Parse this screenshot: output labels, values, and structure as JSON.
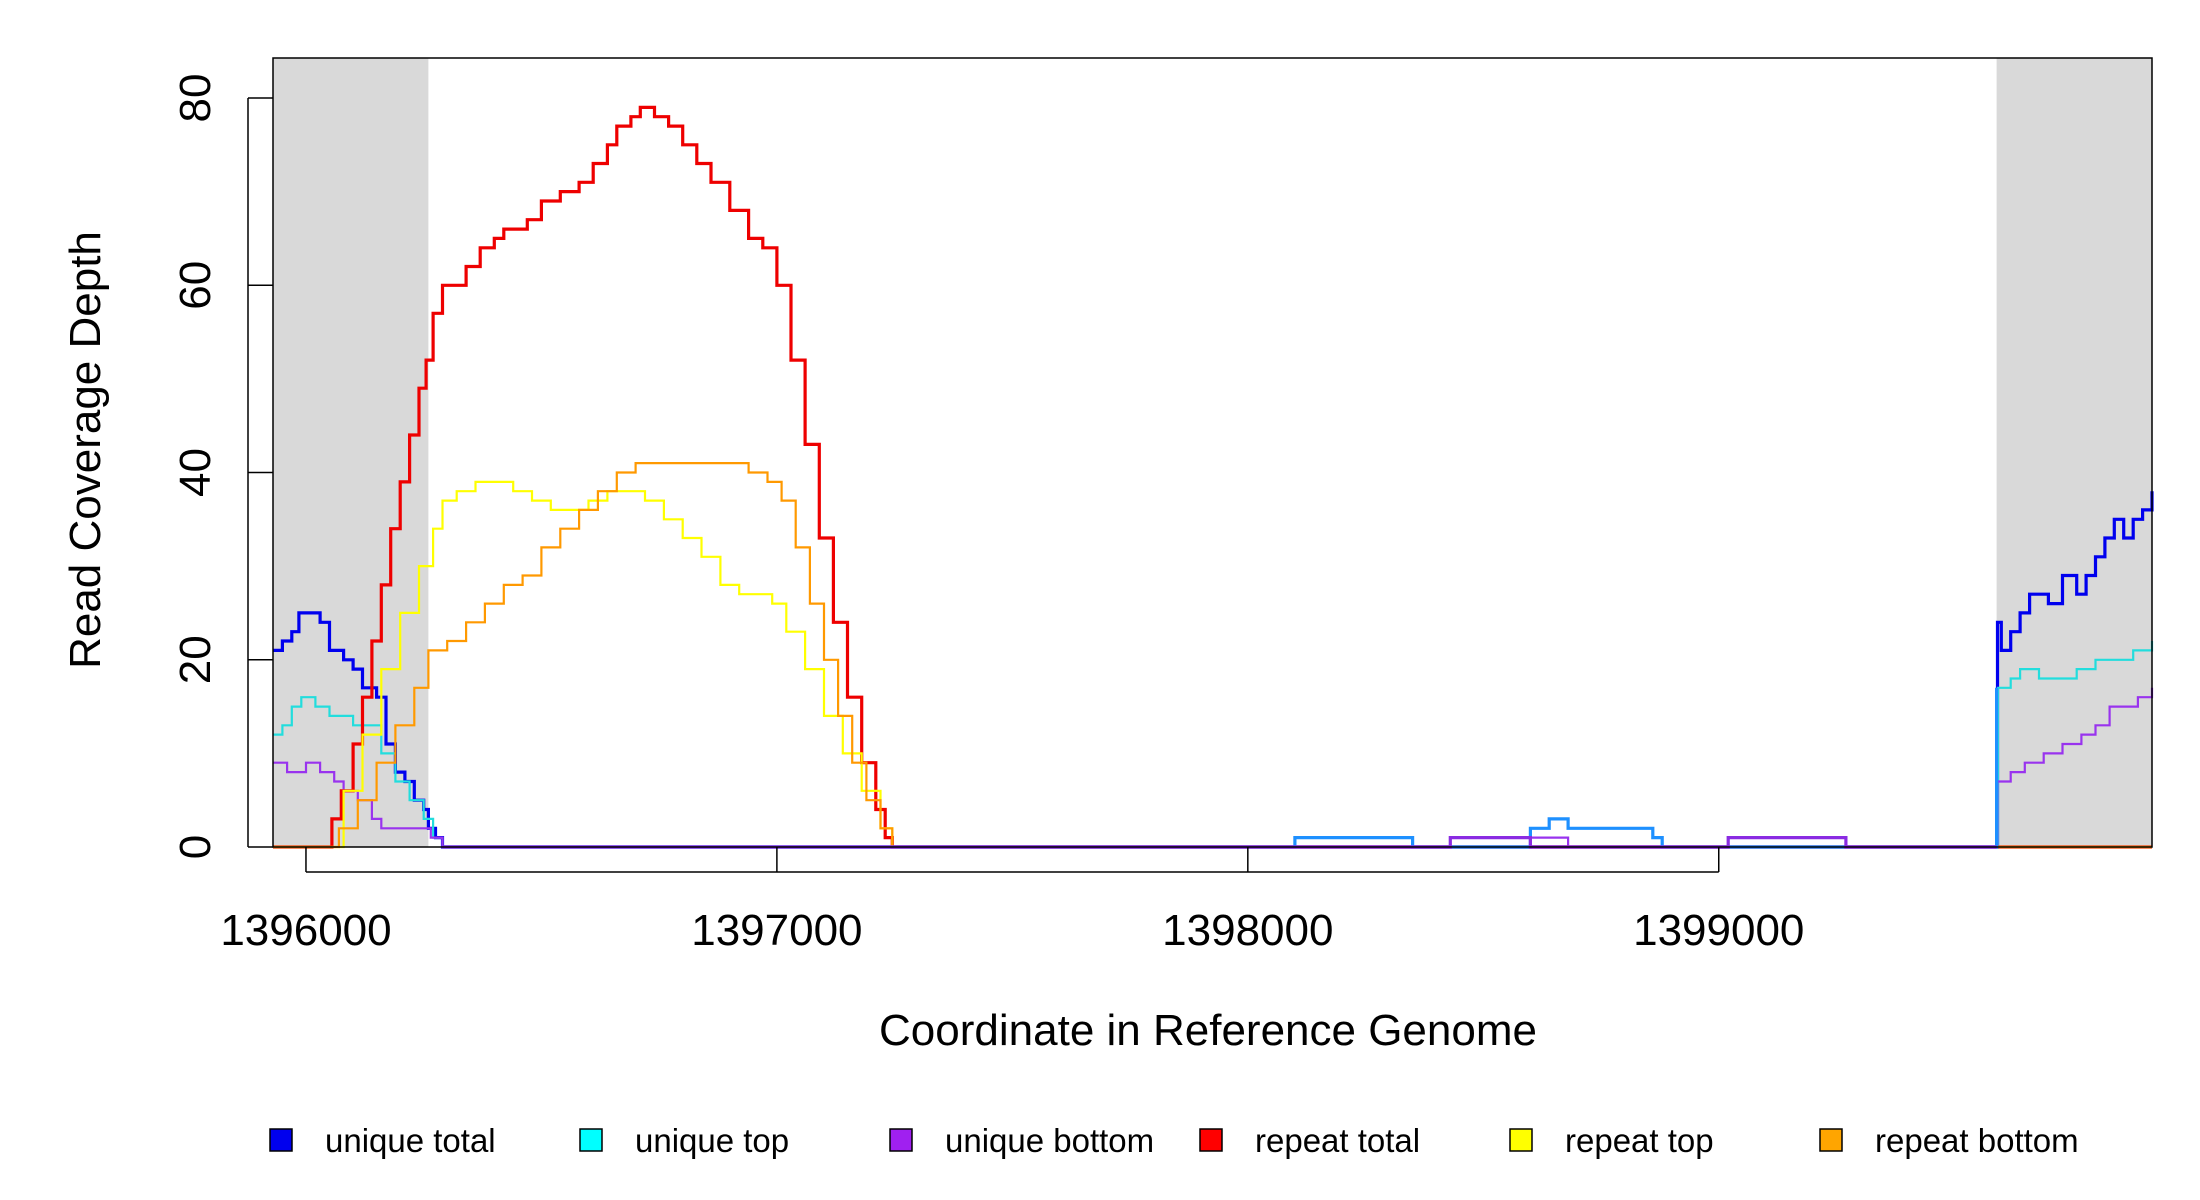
{
  "chart_data": {
    "type": "line",
    "title": "",
    "xlabel": "Coordinate in Reference Genome",
    "ylabel": "Read Coverage Depth",
    "xlim": [
      1395930,
      1399920
    ],
    "ylim": [
      0,
      84
    ],
    "x_ticks": [
      1396000,
      1397000,
      1398000,
      1399000
    ],
    "x_tick_labels": [
      "1396000",
      "1397000",
      "1398000",
      "1399000"
    ],
    "y_ticks": [
      0,
      20,
      40,
      60,
      80
    ],
    "y_tick_labels": [
      "0",
      "20",
      "40",
      "60",
      "80"
    ],
    "shaded_regions": [
      [
        1395930,
        1396260
      ],
      [
        1399590,
        1399920
      ]
    ],
    "legend_position": "bottom",
    "series": [
      {
        "name": "unique total",
        "color": "#0000ee",
        "width": 3.2,
        "points": [
          [
            1395930,
            21
          ],
          [
            1395950,
            22
          ],
          [
            1395970,
            23
          ],
          [
            1395985,
            25
          ],
          [
            1396015,
            25
          ],
          [
            1396030,
            24
          ],
          [
            1396050,
            21
          ],
          [
            1396080,
            20
          ],
          [
            1396100,
            19
          ],
          [
            1396120,
            17
          ],
          [
            1396150,
            16
          ],
          [
            1396170,
            11
          ],
          [
            1396190,
            8
          ],
          [
            1396210,
            7
          ],
          [
            1396230,
            5
          ],
          [
            1396250,
            4
          ],
          [
            1396260,
            2
          ],
          [
            1396275,
            1
          ],
          [
            1396290,
            0
          ],
          [
            1399590,
            0
          ],
          [
            1399592,
            24
          ],
          [
            1399600,
            21
          ],
          [
            1399620,
            23
          ],
          [
            1399640,
            25
          ],
          [
            1399660,
            27
          ],
          [
            1399700,
            26
          ],
          [
            1399730,
            29
          ],
          [
            1399760,
            27
          ],
          [
            1399780,
            29
          ],
          [
            1399800,
            31
          ],
          [
            1399820,
            33
          ],
          [
            1399840,
            35
          ],
          [
            1399860,
            33
          ],
          [
            1399880,
            35
          ],
          [
            1399900,
            36
          ],
          [
            1399920,
            38
          ]
        ]
      },
      {
        "name": "unique top",
        "color": "#22dddd",
        "width": 2.2,
        "points": [
          [
            1395930,
            12
          ],
          [
            1395950,
            13
          ],
          [
            1395970,
            15
          ],
          [
            1395990,
            16
          ],
          [
            1396020,
            15
          ],
          [
            1396050,
            14
          ],
          [
            1396100,
            13
          ],
          [
            1396130,
            13
          ],
          [
            1396160,
            10
          ],
          [
            1396190,
            7
          ],
          [
            1396220,
            5
          ],
          [
            1396250,
            3
          ],
          [
            1396270,
            1
          ],
          [
            1396290,
            0
          ],
          [
            1399590,
            0
          ],
          [
            1399593,
            17
          ],
          [
            1399620,
            18
          ],
          [
            1399640,
            19
          ],
          [
            1399680,
            18
          ],
          [
            1399720,
            18
          ],
          [
            1399760,
            19
          ],
          [
            1399800,
            20
          ],
          [
            1399840,
            20
          ],
          [
            1399880,
            21
          ],
          [
            1399920,
            22
          ]
        ]
      },
      {
        "name": "unique bottom",
        "color": "#9933ee",
        "width": 2.2,
        "points": [
          [
            1395930,
            9
          ],
          [
            1395960,
            8
          ],
          [
            1396000,
            9
          ],
          [
            1396030,
            8
          ],
          [
            1396060,
            7
          ],
          [
            1396080,
            6
          ],
          [
            1396110,
            5
          ],
          [
            1396140,
            3
          ],
          [
            1396160,
            2
          ],
          [
            1396250,
            2
          ],
          [
            1396265,
            1
          ],
          [
            1396290,
            0
          ],
          [
            1398430,
            0
          ],
          [
            1398430,
            1
          ],
          [
            1398600,
            1
          ],
          [
            1398670,
            1
          ],
          [
            1398680,
            0
          ],
          [
            1399590,
            0
          ],
          [
            1399592,
            7
          ],
          [
            1399620,
            8
          ],
          [
            1399650,
            9
          ],
          [
            1399690,
            10
          ],
          [
            1399730,
            11
          ],
          [
            1399770,
            12
          ],
          [
            1399800,
            13
          ],
          [
            1399830,
            15
          ],
          [
            1399860,
            15
          ],
          [
            1399890,
            16
          ],
          [
            1399920,
            17
          ]
        ]
      },
      {
        "name": "repeat total",
        "color": "#ee0000",
        "width": 3.2,
        "points": [
          [
            1395930,
            0
          ],
          [
            1396040,
            0
          ],
          [
            1396055,
            3
          ],
          [
            1396075,
            6
          ],
          [
            1396100,
            11
          ],
          [
            1396120,
            16
          ],
          [
            1396140,
            22
          ],
          [
            1396160,
            28
          ],
          [
            1396180,
            34
          ],
          [
            1396200,
            39
          ],
          [
            1396220,
            44
          ],
          [
            1396240,
            49
          ],
          [
            1396255,
            52
          ],
          [
            1396270,
            57
          ],
          [
            1396290,
            60
          ],
          [
            1396310,
            60
          ],
          [
            1396340,
            62
          ],
          [
            1396370,
            64
          ],
          [
            1396400,
            65
          ],
          [
            1396420,
            66
          ],
          [
            1396450,
            66
          ],
          [
            1396470,
            67
          ],
          [
            1396500,
            69
          ],
          [
            1396540,
            70
          ],
          [
            1396580,
            71
          ],
          [
            1396610,
            73
          ],
          [
            1396640,
            75
          ],
          [
            1396660,
            77
          ],
          [
            1396690,
            78
          ],
          [
            1396710,
            79
          ],
          [
            1396740,
            78
          ],
          [
            1396770,
            77
          ],
          [
            1396800,
            75
          ],
          [
            1396830,
            73
          ],
          [
            1396860,
            71
          ],
          [
            1396900,
            68
          ],
          [
            1396940,
            65
          ],
          [
            1396970,
            64
          ],
          [
            1397000,
            60
          ],
          [
            1397030,
            52
          ],
          [
            1397060,
            43
          ],
          [
            1397090,
            33
          ],
          [
            1397120,
            24
          ],
          [
            1397150,
            16
          ],
          [
            1397180,
            9
          ],
          [
            1397210,
            4
          ],
          [
            1397230,
            1
          ],
          [
            1397245,
            0
          ],
          [
            1399920,
            0
          ]
        ]
      },
      {
        "name": "repeat top",
        "color": "#ffff00",
        "width": 2.2,
        "points": [
          [
            1395930,
            0
          ],
          [
            1396040,
            0
          ],
          [
            1396080,
            6
          ],
          [
            1396120,
            12
          ],
          [
            1396160,
            19
          ],
          [
            1396200,
            25
          ],
          [
            1396240,
            30
          ],
          [
            1396270,
            34
          ],
          [
            1396290,
            37
          ],
          [
            1396320,
            38
          ],
          [
            1396360,
            39
          ],
          [
            1396400,
            39
          ],
          [
            1396440,
            38
          ],
          [
            1396480,
            37
          ],
          [
            1396520,
            36
          ],
          [
            1396560,
            36
          ],
          [
            1396600,
            37
          ],
          [
            1396640,
            38
          ],
          [
            1396680,
            38
          ],
          [
            1396720,
            37
          ],
          [
            1396760,
            35
          ],
          [
            1396800,
            33
          ],
          [
            1396840,
            31
          ],
          [
            1396880,
            28
          ],
          [
            1396920,
            27
          ],
          [
            1396960,
            27
          ],
          [
            1396990,
            26
          ],
          [
            1397020,
            23
          ],
          [
            1397060,
            19
          ],
          [
            1397100,
            14
          ],
          [
            1397140,
            10
          ],
          [
            1397180,
            6
          ],
          [
            1397220,
            2
          ],
          [
            1397245,
            0
          ],
          [
            1399920,
            0
          ]
        ]
      },
      {
        "name": "repeat bottom",
        "color": "#ff9900",
        "width": 2.2,
        "points": [
          [
            1395930,
            0
          ],
          [
            1396040,
            0
          ],
          [
            1396070,
            2
          ],
          [
            1396110,
            5
          ],
          [
            1396150,
            9
          ],
          [
            1396190,
            13
          ],
          [
            1396230,
            17
          ],
          [
            1396260,
            21
          ],
          [
            1396300,
            22
          ],
          [
            1396340,
            24
          ],
          [
            1396380,
            26
          ],
          [
            1396420,
            28
          ],
          [
            1396460,
            29
          ],
          [
            1396500,
            32
          ],
          [
            1396540,
            34
          ],
          [
            1396580,
            36
          ],
          [
            1396620,
            38
          ],
          [
            1396660,
            40
          ],
          [
            1396700,
            41
          ],
          [
            1396740,
            41
          ],
          [
            1396780,
            41
          ],
          [
            1396820,
            41
          ],
          [
            1396860,
            41
          ],
          [
            1396900,
            41
          ],
          [
            1396940,
            40
          ],
          [
            1396980,
            39
          ],
          [
            1397010,
            37
          ],
          [
            1397040,
            32
          ],
          [
            1397070,
            26
          ],
          [
            1397100,
            20
          ],
          [
            1397130,
            14
          ],
          [
            1397160,
            9
          ],
          [
            1397190,
            5
          ],
          [
            1397220,
            2
          ],
          [
            1397245,
            0
          ],
          [
            1399920,
            0
          ]
        ]
      },
      {
        "name": "dodgerblue overlay",
        "color": "#1e90ff",
        "width": 3.2,
        "legend": false,
        "points": [
          [
            1396290,
            0
          ],
          [
            1398100,
            0
          ],
          [
            1398100,
            1
          ],
          [
            1398350,
            1
          ],
          [
            1398350,
            0
          ],
          [
            1398600,
            0
          ],
          [
            1398600,
            2
          ],
          [
            1398640,
            2
          ],
          [
            1398640,
            3
          ],
          [
            1398680,
            3
          ],
          [
            1398680,
            2
          ],
          [
            1398860,
            2
          ],
          [
            1398860,
            1
          ],
          [
            1398880,
            1
          ],
          [
            1398880,
            0
          ],
          [
            1399590,
            0
          ],
          [
            1399590,
            17
          ]
        ]
      },
      {
        "name": "blueviolet overlay",
        "color": "#8a2be2",
        "width": 3.2,
        "legend": false,
        "points": [
          [
            1396290,
            0
          ],
          [
            1398430,
            0
          ],
          [
            1398430,
            1
          ],
          [
            1398600,
            1
          ],
          [
            1398600,
            0
          ],
          [
            1399020,
            0
          ],
          [
            1399020,
            1
          ],
          [
            1399270,
            1
          ],
          [
            1399270,
            0
          ],
          [
            1399590,
            0
          ]
        ]
      }
    ],
    "legend": [
      {
        "label": "unique total",
        "color": "#0000ee"
      },
      {
        "label": "unique top",
        "color": "#00ffff"
      },
      {
        "label": "unique bottom",
        "color": "#a020f0"
      },
      {
        "label": "repeat total",
        "color": "#ff0000"
      },
      {
        "label": "repeat top",
        "color": "#ffff00"
      },
      {
        "label": "repeat bottom",
        "color": "#ffa500"
      }
    ]
  }
}
